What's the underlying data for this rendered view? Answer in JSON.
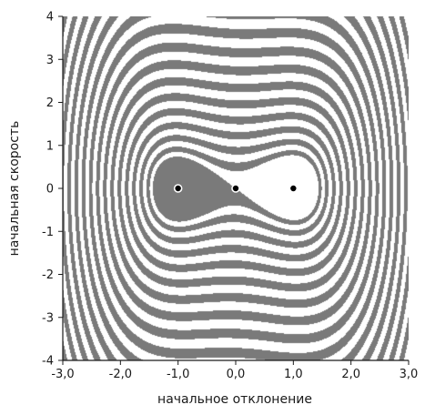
{
  "chart_data": {
    "type": "heatmap",
    "description_kind": "basins of attraction of a double-well oscillator (two-color stripes)",
    "xlabel": "начальное  отклонение",
    "ylabel": "начальная  скорость",
    "xlim": [
      -3.0,
      3.0
    ],
    "ylim": [
      -4,
      4
    ],
    "x_ticks": [
      -3.0,
      -2.0,
      -1.0,
      0.0,
      1.0,
      2.0,
      3.0
    ],
    "x_tick_labels": [
      "-3,0",
      "-2,0",
      "-1,0",
      "0,0",
      "1,0",
      "2,0",
      "3,0"
    ],
    "y_ticks": [
      4,
      3,
      2,
      1,
      0,
      -1,
      -2,
      -3,
      -4
    ],
    "y_tick_labels": [
      "4",
      "3",
      "2",
      "1",
      "0",
      "-1",
      "-2",
      "-3",
      "-4"
    ],
    "equilibria": [
      {
        "x": -1.0,
        "y": 0,
        "kind": "stable"
      },
      {
        "x": 0.0,
        "y": 0,
        "kind": "saddle"
      },
      {
        "x": 1.0,
        "y": 0,
        "kind": "stable"
      }
    ],
    "colors": {
      "basin_left": "#7a7a7a",
      "basin_right": "#ffffff",
      "axis": "#1a1a1a",
      "point_fill": "#000000",
      "point_ring": "#ffffff"
    }
  }
}
